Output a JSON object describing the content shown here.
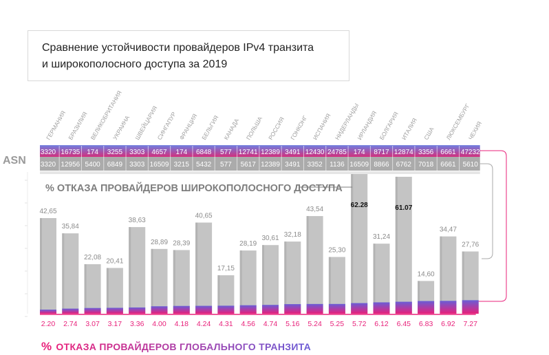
{
  "title": {
    "line1": "Сравнение устойчивости провайдеров IPv4 транзита",
    "line2": "и широкополосного доступа за 2019"
  },
  "asn_label": "ASN",
  "broadband_title": "% ОТКАЗА ПРОВАЙДЕРОВ ШИРОКОПОЛОСНОГО ДОСТУПА",
  "transit_title": {
    "pct": "%",
    "text": "ОТКАЗА ПРОВАЙДЕРОВ ГЛОБАЛЬНОГО ТРАНЗИТА"
  },
  "colors": {
    "gray_bar": "#c4c4c4",
    "transit_bar_top": "#6a5cd6",
    "transit_bar_bottom": "#e8207a",
    "asn_row1_bg": "#5b6fd6",
    "asn_row2_bg": "#a9a9a9",
    "accent_pink": "#e8207a"
  },
  "chart_data": {
    "type": "bar",
    "categories": [
      "ГЕРМАНИЯ",
      "БРАЗИЛИЯ",
      "ВЕЛИКОБРИТАНИЯ",
      "УКРАИНА",
      "ШВЕЙЦАРИЯ",
      "СИНГАПУР",
      "ФРАНЦИЯ",
      "БЕЛЬГИЯ",
      "КАНАДА",
      "ПОЛЬША",
      "РОССИЯ",
      "ГОНКОНГ",
      "ИСПАНИЯ",
      "НИДЕРЛАНДЫ",
      "ИРЛАНДИЯ",
      "БОЛГАРИЯ",
      "ИТАЛИЯ",
      "США",
      "ЛЮКСЕМБУРГ",
      "ЧЕХИЯ"
    ],
    "asn_transit": [
      "3320",
      "16735",
      "174",
      "3255",
      "3303",
      "4657",
      "174",
      "6848",
      "577",
      "12741",
      "12389",
      "3491",
      "12430",
      "24785",
      "174",
      "8717",
      "12874",
      "3356",
      "6661",
      "47232"
    ],
    "asn_broadband": [
      "3320",
      "12956",
      "5400",
      "6849",
      "3303",
      "16509",
      "3215",
      "5432",
      "577",
      "5617",
      "12389",
      "3491",
      "3352",
      "1136",
      "16509",
      "8866",
      "6762",
      "7018",
      "6661",
      "5610"
    ],
    "series": [
      {
        "name": "% ОТКАЗА ПРОВАЙДЕРОВ ШИРОКОПОЛОСНОГО ДОСТУПА",
        "values": [
          42.65,
          35.84,
          22.08,
          20.41,
          38.63,
          28.89,
          28.39,
          40.65,
          17.15,
          28.19,
          30.61,
          32.18,
          43.54,
          25.3,
          62.28,
          31.24,
          61.07,
          14.6,
          34.47,
          27.76
        ],
        "labels": [
          "42,65",
          "35,84",
          "22,08",
          "20,41",
          "38,63",
          "28,89",
          "28,39",
          "40,65",
          "17,15",
          "28,19",
          "30,61",
          "32,18",
          "43,54",
          "25,30",
          "62.28",
          "31,24",
          "61.07",
          "14,60",
          "34,47",
          "27,76"
        ]
      },
      {
        "name": "% ОТКАЗА ПРОВАЙДЕРОВ ГЛОБАЛЬНОГО ТРАНЗИТА",
        "values": [
          2.2,
          2.74,
          3.07,
          3.17,
          3.36,
          4.0,
          4.18,
          4.24,
          4.31,
          4.56,
          4.74,
          5.16,
          5.24,
          5.25,
          5.72,
          6.12,
          6.45,
          6.83,
          6.92,
          7.27
        ],
        "labels": [
          "2.20",
          "2.74",
          "3.07",
          "3.17",
          "3.36",
          "4.00",
          "4.18",
          "4.24",
          "4.31",
          "4.56",
          "4.74",
          "5.16",
          "5.24",
          "5.25",
          "5.72",
          "6.12",
          "6.45",
          "6.83",
          "6.92",
          "7.27"
        ]
      }
    ],
    "ylim": [
      0,
      65
    ]
  }
}
